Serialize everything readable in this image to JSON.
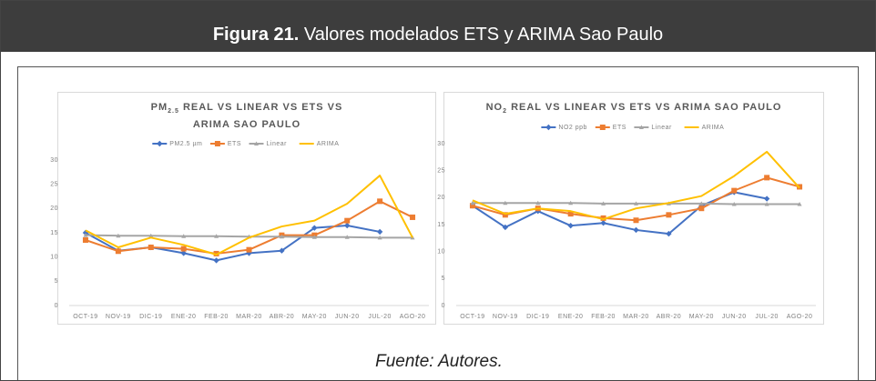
{
  "figure": {
    "label": "Figura 21.",
    "title": "Valores modelados ETS y ARIMA Sao Paulo"
  },
  "source": "Fuente: Autores.",
  "chart_data": [
    {
      "type": "line",
      "title": {
        "main": "PM",
        "sub": "2.5",
        "rest": "REAL VS LINEAR VS ETS VS ARIMA SAO PAULO"
      },
      "categories": [
        "OCT-19",
        "NOV-19",
        "DIC-19",
        "ENE-20",
        "FEB-20",
        "MAR-20",
        "ABR-20",
        "MAY-20",
        "JUN-20",
        "JUL-20",
        "AGO-20"
      ],
      "ylim": [
        0,
        30
      ],
      "yticks": [
        0,
        5,
        10,
        15,
        20,
        25,
        30
      ],
      "grid": false,
      "legend": "top",
      "series": [
        {
          "name": "PM2.5 µm",
          "color": "#4472c4",
          "marker": "diamond",
          "values": [
            15,
            11.3,
            12,
            10.8,
            9.3,
            10.8,
            11.3,
            16,
            16.5,
            15.2,
            null
          ]
        },
        {
          "name": "ETS",
          "color": "#ed7d31",
          "marker": "square",
          "values": [
            13.5,
            11.2,
            12,
            11.7,
            10.7,
            11.5,
            14.5,
            14.5,
            17.5,
            21.5,
            18.2
          ]
        },
        {
          "name": "Linear",
          "color": "#a5a5a5",
          "marker": "triangle",
          "values": [
            14.5,
            14.4,
            14.4,
            14.3,
            14.3,
            14.2,
            14.2,
            14.1,
            14.1,
            14.0,
            14.0
          ]
        },
        {
          "name": "ARIMA",
          "color": "#ffc000",
          "marker": "none",
          "values": [
            15.5,
            12,
            14,
            12.5,
            10.5,
            14,
            16.3,
            17.5,
            21,
            26.8,
            14
          ]
        }
      ]
    },
    {
      "type": "line",
      "title": {
        "main": "NO",
        "sub": "2",
        "rest": "REAL VS LINEAR VS ETS VS ARIMA SAO PAULO"
      },
      "categories": [
        "OCT-19",
        "NOV-19",
        "DIC-19",
        "ENE-20",
        "FEB-20",
        "MAR-20",
        "ABR-20",
        "MAY-20",
        "JUN-20",
        "JUL-20",
        "AGO-20"
      ],
      "ylim": [
        0,
        30
      ],
      "yticks": [
        0,
        5,
        10,
        15,
        20,
        25,
        30
      ],
      "grid": false,
      "legend": "top",
      "series": [
        {
          "name": "NO2 ppb",
          "color": "#4472c4",
          "marker": "diamond",
          "values": [
            18.5,
            14.5,
            17.5,
            14.8,
            15.3,
            14,
            13.3,
            18.5,
            21,
            19.8,
            null
          ]
        },
        {
          "name": "ETS",
          "color": "#ed7d31",
          "marker": "square",
          "values": [
            18.5,
            16.8,
            18,
            17,
            16.2,
            15.8,
            16.8,
            18,
            21.3,
            23.7,
            22
          ]
        },
        {
          "name": "Linear",
          "color": "#a5a5a5",
          "marker": "triangle",
          "values": [
            19,
            19,
            19,
            19,
            18.9,
            18.9,
            18.9,
            18.9,
            18.8,
            18.8,
            18.8
          ]
        },
        {
          "name": "ARIMA",
          "color": "#ffc000",
          "marker": "none",
          "values": [
            19.5,
            17,
            18,
            17.5,
            16,
            18,
            19,
            20.3,
            24,
            28.5,
            21.8
          ]
        }
      ]
    }
  ]
}
